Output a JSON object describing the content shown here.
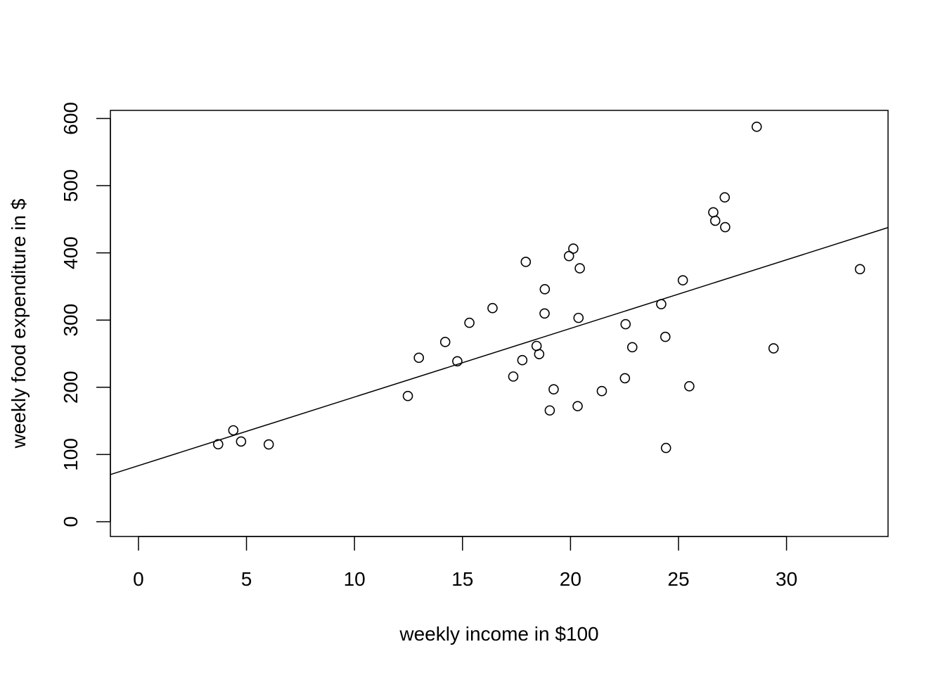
{
  "chart_data": {
    "type": "scatter",
    "title": "",
    "xlabel": "weekly income in $100",
    "ylabel": "weekly food expenditure in $",
    "xlim": [
      -1.3,
      34.7
    ],
    "ylim": [
      -22,
      612
    ],
    "x_ticks": [
      0,
      5,
      10,
      15,
      20,
      25,
      30
    ],
    "y_ticks": [
      0,
      100,
      200,
      300,
      400,
      500,
      600
    ],
    "x_tick_labels": [
      "0",
      "5",
      "10",
      "15",
      "20",
      "25",
      "30"
    ],
    "y_tick_labels": [
      "0",
      "100",
      "200",
      "300",
      "400",
      "500",
      "600"
    ],
    "grid": false,
    "regression_line": {
      "intercept": 83.4,
      "slope": 10.21
    },
    "points": [
      {
        "x": 3.69,
        "y": 115.2
      },
      {
        "x": 4.39,
        "y": 135.98
      },
      {
        "x": 4.75,
        "y": 119.34
      },
      {
        "x": 6.03,
        "y": 114.96
      },
      {
        "x": 12.47,
        "y": 187.05
      },
      {
        "x": 12.98,
        "y": 243.92
      },
      {
        "x": 14.2,
        "y": 267.43
      },
      {
        "x": 14.76,
        "y": 238.71
      },
      {
        "x": 15.32,
        "y": 295.94
      },
      {
        "x": 16.39,
        "y": 317.78
      },
      {
        "x": 17.35,
        "y": 216.0
      },
      {
        "x": 17.77,
        "y": 240.35
      },
      {
        "x": 17.93,
        "y": 386.57
      },
      {
        "x": 18.43,
        "y": 261.53
      },
      {
        "x": 18.55,
        "y": 249.34
      },
      {
        "x": 18.8,
        "y": 309.87
      },
      {
        "x": 18.81,
        "y": 345.89
      },
      {
        "x": 19.04,
        "y": 165.54
      },
      {
        "x": 19.22,
        "y": 196.98
      },
      {
        "x": 19.93,
        "y": 395.26
      },
      {
        "x": 20.13,
        "y": 406.34
      },
      {
        "x": 20.33,
        "y": 171.92
      },
      {
        "x": 20.37,
        "y": 303.23
      },
      {
        "x": 20.43,
        "y": 377.04
      },
      {
        "x": 21.45,
        "y": 194.35
      },
      {
        "x": 22.52,
        "y": 213.48
      },
      {
        "x": 22.55,
        "y": 293.87
      },
      {
        "x": 22.86,
        "y": 259.61
      },
      {
        "x": 24.2,
        "y": 323.71
      },
      {
        "x": 24.39,
        "y": 275.02
      },
      {
        "x": 24.42,
        "y": 109.71
      },
      {
        "x": 25.2,
        "y": 359.19
      },
      {
        "x": 25.5,
        "y": 201.51
      },
      {
        "x": 26.61,
        "y": 460.36
      },
      {
        "x": 26.7,
        "y": 447.76
      },
      {
        "x": 27.14,
        "y": 482.55
      },
      {
        "x": 27.16,
        "y": 438.29
      },
      {
        "x": 28.62,
        "y": 587.66
      },
      {
        "x": 29.4,
        "y": 257.95
      },
      {
        "x": 33.4,
        "y": 375.73
      }
    ]
  }
}
